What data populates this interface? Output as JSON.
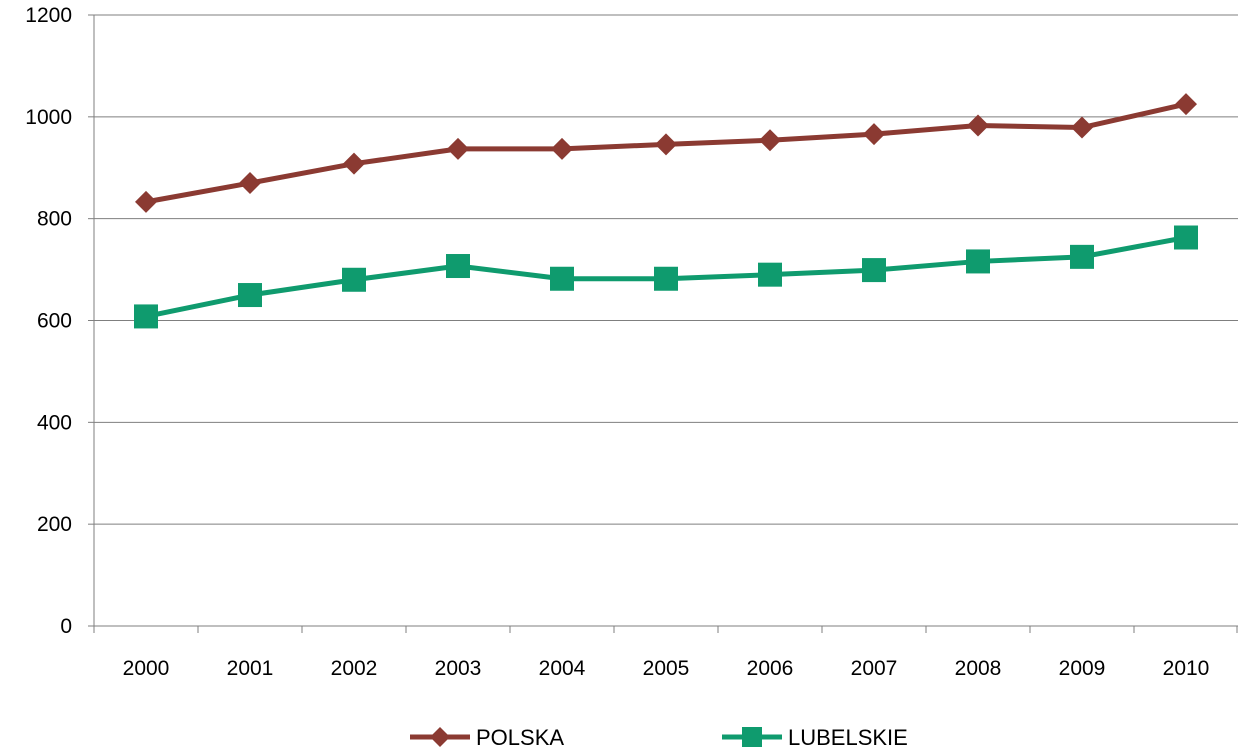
{
  "chart_data": {
    "type": "line",
    "categories": [
      "2000",
      "2001",
      "2002",
      "2003",
      "2004",
      "2005",
      "2006",
      "2007",
      "2008",
      "2009",
      "2010"
    ],
    "series": [
      {
        "name": "POLSKA",
        "color": "#8b3a32",
        "marker": "diamond",
        "values": [
          833,
          870,
          908,
          937,
          937,
          946,
          954,
          966,
          983,
          979,
          1025
        ]
      },
      {
        "name": "LUBELSKIE",
        "color": "#0f9b6e",
        "marker": "square",
        "values": [
          608,
          650,
          680,
          707,
          682,
          682,
          690,
          699,
          716,
          725,
          763
        ]
      }
    ],
    "ylim": [
      0,
      1200
    ],
    "yticks": [
      "0",
      "200",
      "400",
      "600",
      "800",
      "1000",
      "1200"
    ],
    "grid": true,
    "legend_position": "bottom"
  }
}
